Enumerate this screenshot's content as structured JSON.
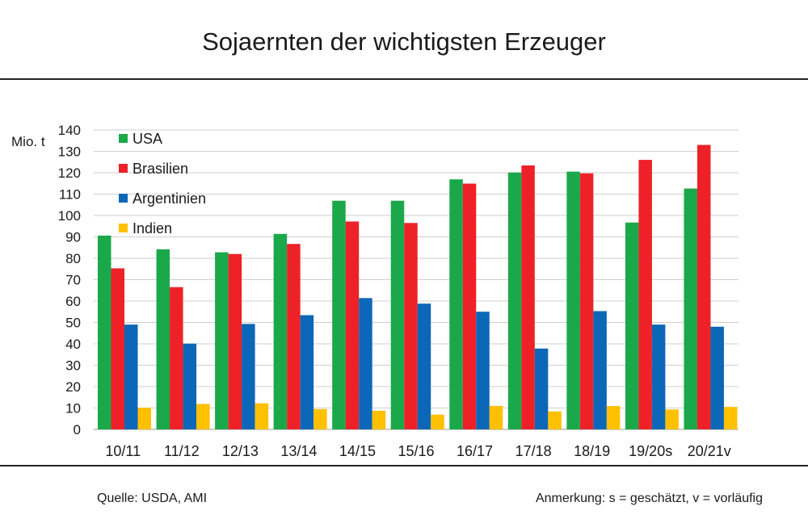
{
  "title": "Sojaernten der wichtigsten Erzeuger",
  "source": "Quelle: USDA, AMI",
  "note": "Anmerkung: s = geschätzt, v = vorläufig",
  "chart_data": {
    "type": "bar",
    "ylabel": "Mio. t",
    "xlabel": "",
    "ylim": [
      0,
      140
    ],
    "yticks": [
      0,
      10,
      20,
      30,
      40,
      50,
      60,
      70,
      80,
      90,
      100,
      110,
      120,
      130,
      140
    ],
    "grid": true,
    "legend": "top-left",
    "categories": [
      "10/11",
      "11/12",
      "12/13",
      "13/14",
      "14/15",
      "15/16",
      "16/17",
      "17/18",
      "18/19",
      "19/20s",
      "20/21v"
    ],
    "series": [
      {
        "name": "USA",
        "color": "#1aa84a",
        "values": [
          90.6,
          84.2,
          82.8,
          91.4,
          106.9,
          106.9,
          116.9,
          120.1,
          120.5,
          96.7,
          112.6
        ]
      },
      {
        "name": "Brasilien",
        "color": "#ee2128",
        "values": [
          75.3,
          66.5,
          82.0,
          86.7,
          97.2,
          96.5,
          114.9,
          123.4,
          119.7,
          126.0,
          133.0
        ]
      },
      {
        "name": "Argentinien",
        "color": "#0d67b8",
        "values": [
          49.0,
          40.1,
          49.3,
          53.4,
          61.4,
          58.8,
          55.0,
          37.8,
          55.3,
          49.0,
          48.0
        ]
      },
      {
        "name": "Indien",
        "color": "#ffc000",
        "values": [
          10.1,
          11.9,
          12.2,
          9.5,
          8.7,
          6.9,
          11.0,
          8.4,
          10.9,
          9.3,
          10.5
        ]
      }
    ]
  }
}
